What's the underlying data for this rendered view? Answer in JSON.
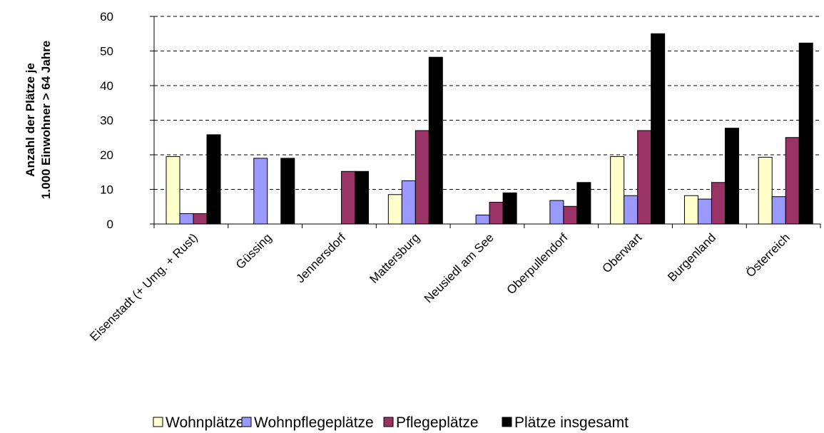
{
  "chart_data": {
    "type": "bar",
    "ylabel_line1": "Anzahl der Plätze je",
    "ylabel_line2": "1.000 Einwohner > 64 Jahre",
    "ylim": [
      0,
      60
    ],
    "yticks": [
      "0",
      "10",
      "20",
      "30",
      "40",
      "50",
      "60"
    ],
    "grid": true,
    "legend_position": "bottom",
    "categories": [
      "Eisenstadt (+ Umg. + Rust)",
      "Güssing",
      "Jennersdorf",
      "Mattersburg",
      "Neusiedl am See",
      "Oberpullendorf",
      "Oberwart",
      "Burgenland",
      "Österreich"
    ],
    "series": [
      {
        "name": "Wohnplätze",
        "color": "#ffffcc",
        "values": [
          19.5,
          0,
          0,
          8.5,
          0,
          0,
          19.5,
          8.2,
          19.3
        ]
      },
      {
        "name": "Wohnpflegeplätze",
        "color": "#9999ff",
        "values": [
          3,
          19,
          0,
          12.5,
          2.6,
          6.8,
          8.2,
          7.2,
          7.9
        ]
      },
      {
        "name": "Pflegeplätze",
        "color": "#993366",
        "values": [
          3,
          0,
          15.2,
          27,
          6.3,
          5.1,
          27,
          12,
          25
        ]
      },
      {
        "name": "Plätze insgesamt",
        "color": "#000000",
        "values": [
          25.8,
          19,
          15.2,
          48.2,
          9,
          12,
          55,
          27.7,
          52.3
        ]
      }
    ]
  }
}
